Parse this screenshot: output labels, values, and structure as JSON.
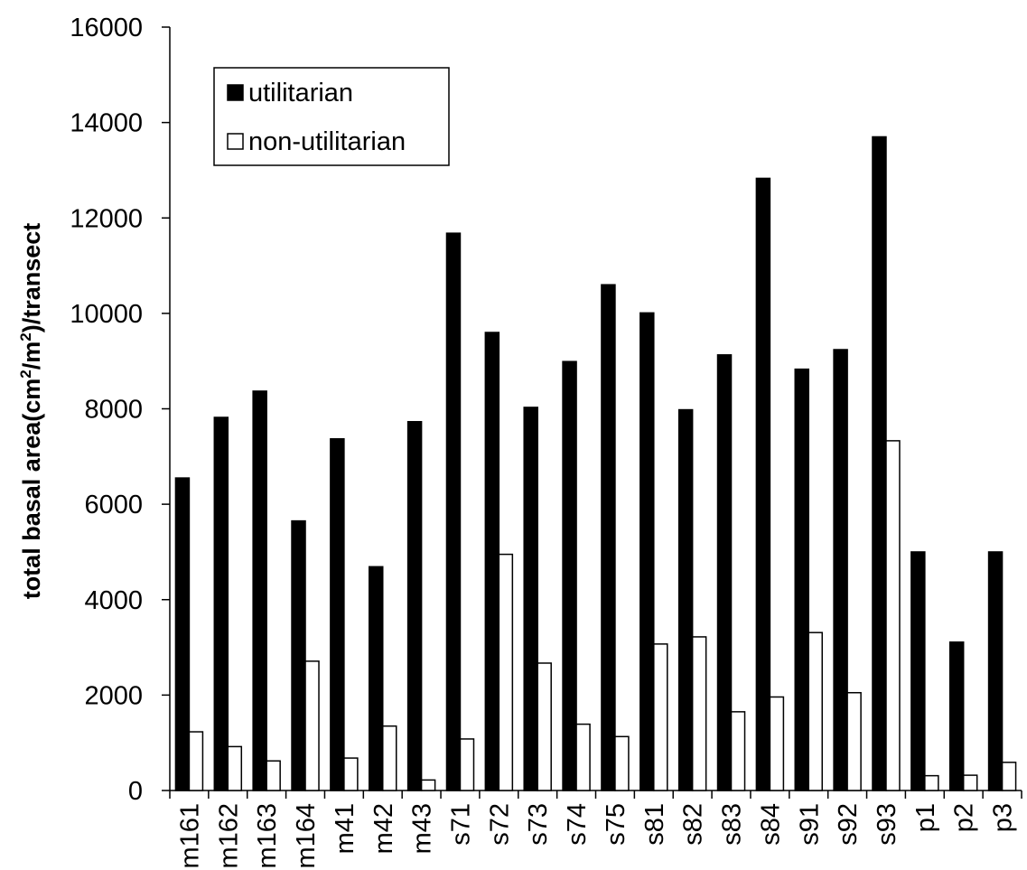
{
  "chart_data": {
    "type": "bar",
    "categories": [
      "m161",
      "m162",
      "m163",
      "m164",
      "m41",
      "m42",
      "m43",
      "s71",
      "s72",
      "s73",
      "s74",
      "s75",
      "s81",
      "s82",
      "s83",
      "s84",
      "s91",
      "s92",
      "s93",
      "p1",
      "p2",
      "p3"
    ],
    "series": [
      {
        "name": "utilitarian",
        "color": "#000000",
        "values": [
          6550,
          7820,
          8370,
          5650,
          7370,
          4690,
          7730,
          11680,
          9600,
          8030,
          8990,
          10600,
          10010,
          7980,
          9130,
          12830,
          8830,
          9240,
          13700,
          5000,
          3110,
          5000
        ]
      },
      {
        "name": "non-utilitarian",
        "color": "#ffffff",
        "values": [
          1230,
          920,
          620,
          2710,
          680,
          1350,
          220,
          1080,
          4950,
          2670,
          1390,
          1130,
          3070,
          3220,
          1650,
          1960,
          3310,
          2050,
          7330,
          310,
          320,
          590
        ]
      }
    ],
    "ylabel": "total basal area(cm²/m²)/transect",
    "ylabel_parts": [
      "total basal area(cm",
      "2",
      "/m",
      "2",
      ")/transect"
    ],
    "xlabel": "",
    "ylim": [
      0,
      16000
    ],
    "yticks": [
      "0",
      "2000",
      "4000",
      "6000",
      "8000",
      "10000",
      "12000",
      "14000",
      "16000"
    ],
    "legend": {
      "placement": "top-left",
      "entries": [
        "utilitarian",
        "non-utilitarian"
      ]
    },
    "grid": false
  }
}
